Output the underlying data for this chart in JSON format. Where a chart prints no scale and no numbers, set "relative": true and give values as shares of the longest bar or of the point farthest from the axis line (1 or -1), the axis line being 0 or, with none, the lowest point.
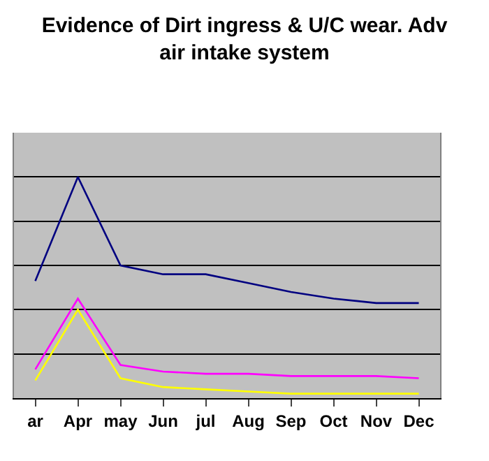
{
  "chart_data": {
    "type": "line",
    "title": "Evidence of Dirt ingress & U/C wear. Adv\nair intake system",
    "relative": true,
    "grid": "y",
    "marker": "none",
    "line_style": "solid",
    "categories": [
      "ar",
      "Apr",
      "may",
      "Jun",
      "jul",
      "Aug",
      "Sep",
      "Oct",
      "Nov",
      "Dec"
    ],
    "series": [
      {
        "color": "#000080",
        "values": [
          0.53,
          1,
          0.6,
          0.56,
          0.56,
          0.52,
          0.48,
          0.45,
          0.43,
          0.43
        ]
      },
      {
        "color": "#ff00ff",
        "values": [
          0.13,
          0.45,
          0.15,
          0.12,
          0.11,
          0.11,
          0.1,
          0.1,
          0.1,
          0.09
        ]
      },
      {
        "color": "#ffff00",
        "values": [
          0.08,
          0.4,
          0.09,
          0.05,
          0.04,
          0.03,
          0.02,
          0.02,
          0.02,
          0.02
        ]
      }
    ]
  }
}
